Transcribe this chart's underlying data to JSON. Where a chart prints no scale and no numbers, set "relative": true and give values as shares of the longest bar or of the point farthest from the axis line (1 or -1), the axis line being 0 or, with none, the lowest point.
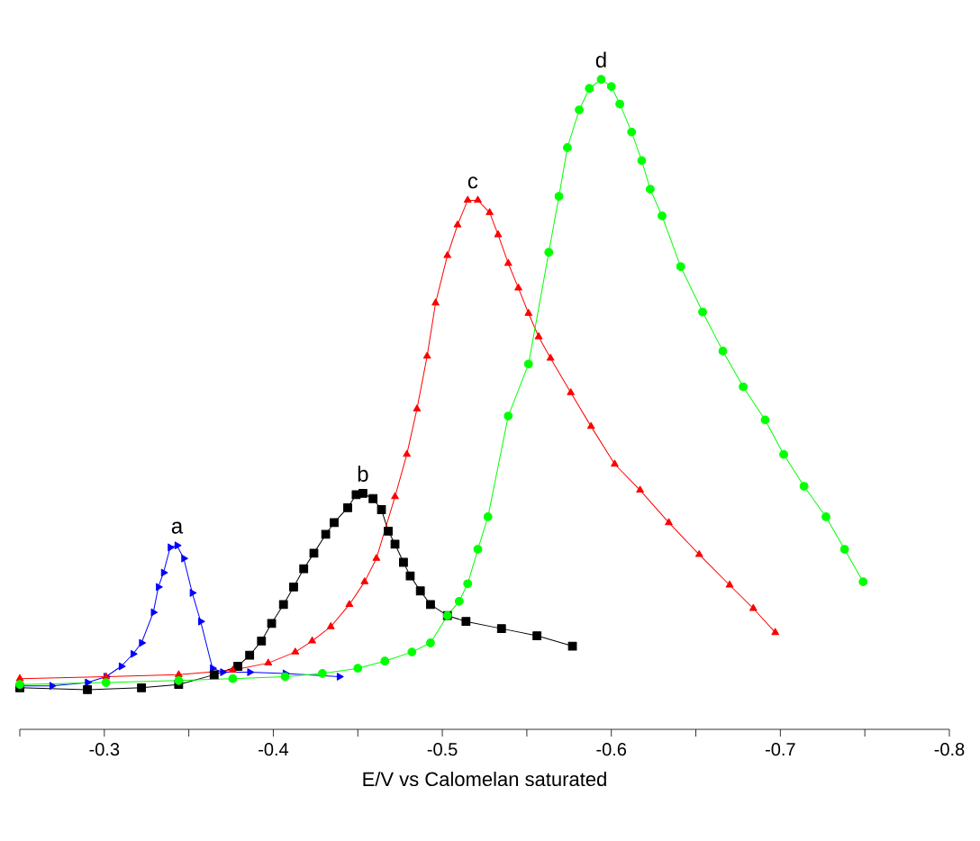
{
  "chart_data": {
    "type": "line",
    "relative": true,
    "xlabel": "E/V vs Calomelan saturated",
    "xlim": [
      -0.25,
      -0.8
    ],
    "xticks": [
      {
        "value": -0.25,
        "label": null
      },
      -0.3,
      {
        "value": -0.35,
        "label": null
      },
      -0.4,
      {
        "value": -0.45,
        "label": null
      },
      -0.5,
      {
        "value": -0.55,
        "label": null
      },
      -0.6,
      {
        "value": -0.65,
        "label": null
      },
      -0.7,
      {
        "value": -0.75,
        "label": null
      },
      -0.8
    ],
    "tick_labels": "x",
    "grid": false,
    "line_style": "solid",
    "annotations": [
      {
        "text": "a",
        "x": -0.343,
        "y": 0.283
      },
      {
        "text": "b",
        "x": -0.453,
        "y": 0.363
      },
      {
        "text": "c",
        "x": -0.518,
        "y": 0.814
      },
      {
        "text": "d",
        "x": -0.594,
        "y": 1.0
      }
    ],
    "series": [
      {
        "color": "#0000ff",
        "marker": "triangle",
        "x": [
          -0.25,
          -0.269,
          -0.29,
          -0.301,
          -0.31,
          -0.317,
          -0.322,
          -0.329,
          -0.332,
          -0.335,
          -0.339,
          -0.343,
          -0.347,
          -0.352,
          -0.357,
          -0.364,
          -0.37,
          -0.386,
          -0.407,
          -0.439
        ],
        "values": [
          0.067,
          0.067,
          0.072,
          0.081,
          0.097,
          0.116,
          0.133,
          0.18,
          0.219,
          0.241,
          0.28,
          0.283,
          0.263,
          0.21,
          0.166,
          0.094,
          0.088,
          0.088,
          0.086,
          0.081
        ]
      },
      {
        "color": "#000000",
        "marker": "square",
        "x": [
          -0.25,
          -0.29,
          -0.322,
          -0.344,
          -0.365,
          -0.379,
          -0.386,
          -0.393,
          -0.399,
          -0.406,
          -0.412,
          -0.418,
          -0.424,
          -0.431,
          -0.436,
          -0.444,
          -0.449,
          -0.453,
          -0.459,
          -0.464,
          -0.468,
          -0.472,
          -0.477,
          -0.481,
          -0.487,
          -0.493,
          -0.503,
          -0.514,
          -0.535,
          -0.556,
          -0.577
        ],
        "values": [
          0.064,
          0.061,
          0.064,
          0.069,
          0.084,
          0.097,
          0.114,
          0.136,
          0.163,
          0.192,
          0.219,
          0.247,
          0.271,
          0.3,
          0.318,
          0.341,
          0.361,
          0.363,
          0.355,
          0.338,
          0.305,
          0.285,
          0.257,
          0.236,
          0.213,
          0.192,
          0.175,
          0.166,
          0.155,
          0.144,
          0.128
        ]
      },
      {
        "color": "#ff0000",
        "marker": "triangle",
        "x": [
          -0.25,
          -0.301,
          -0.344,
          -0.376,
          -0.397,
          -0.413,
          -0.423,
          -0.434,
          -0.445,
          -0.454,
          -0.461,
          -0.472,
          -0.479,
          -0.485,
          -0.491,
          -0.496,
          -0.503,
          -0.509,
          -0.515,
          -0.521,
          -0.528,
          -0.533,
          -0.539,
          -0.545,
          -0.551,
          -0.557,
          -0.564,
          -0.576,
          -0.588,
          -0.602,
          -0.617,
          -0.634,
          -0.652,
          -0.67,
          -0.684,
          -0.697
        ],
        "values": [
          0.078,
          0.081,
          0.084,
          0.091,
          0.102,
          0.119,
          0.136,
          0.158,
          0.192,
          0.227,
          0.263,
          0.358,
          0.423,
          0.493,
          0.574,
          0.656,
          0.729,
          0.776,
          0.814,
          0.814,
          0.795,
          0.761,
          0.717,
          0.679,
          0.64,
          0.604,
          0.571,
          0.518,
          0.466,
          0.408,
          0.368,
          0.318,
          0.269,
          0.222,
          0.186,
          0.149
        ]
      },
      {
        "color": "#00ff00",
        "marker": "circle",
        "x": [
          -0.25,
          -0.301,
          -0.344,
          -0.376,
          -0.407,
          -0.429,
          -0.45,
          -0.466,
          -0.482,
          -0.493,
          -0.503,
          -0.51,
          -0.515,
          -0.521,
          -0.527,
          -0.539,
          -0.551,
          -0.563,
          -0.569,
          -0.574,
          -0.581,
          -0.587,
          -0.594,
          -0.6,
          -0.605,
          -0.612,
          -0.618,
          -0.623,
          -0.63,
          -0.641,
          -0.654,
          -0.666,
          -0.678,
          -0.691,
          -0.702,
          -0.714,
          -0.727,
          -0.738,
          -0.749
        ],
        "values": [
          0.069,
          0.072,
          0.075,
          0.078,
          0.081,
          0.086,
          0.094,
          0.105,
          0.119,
          0.133,
          0.175,
          0.197,
          0.224,
          0.277,
          0.327,
          0.482,
          0.562,
          0.734,
          0.82,
          0.895,
          0.953,
          0.986,
          1.0,
          0.989,
          0.962,
          0.919,
          0.875,
          0.831,
          0.79,
          0.712,
          0.642,
          0.582,
          0.527,
          0.476,
          0.423,
          0.374,
          0.327,
          0.277,
          0.227
        ]
      }
    ]
  }
}
